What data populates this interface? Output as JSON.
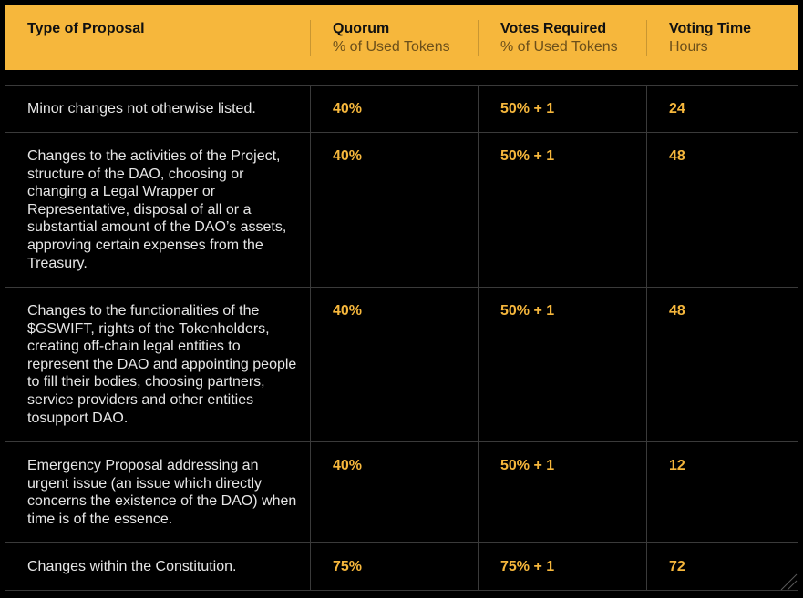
{
  "header": {
    "columns": [
      {
        "title": "Type of Proposal",
        "subtitle": ""
      },
      {
        "title": "Quorum",
        "subtitle": "% of Used Tokens"
      },
      {
        "title": "Votes Required",
        "subtitle": "% of Used Tokens"
      },
      {
        "title": "Voting Time",
        "subtitle": "Hours"
      }
    ]
  },
  "rows": [
    {
      "type": "Minor changes not otherwise listed.",
      "quorum": "40%",
      "votes": "50% + 1",
      "time": "24"
    },
    {
      "type": "Changes to the activities of the Project, structure of the DAO, choosing or changing a Legal Wrapper or Representative, disposal of all or a substantial amount of the DAO’s assets, approving certain expenses from the Treasury.",
      "quorum": "40%",
      "votes": "50% + 1",
      "time": "48"
    },
    {
      "type": "Changes to the functionalities of the $GSWIFT, rights of the Tokenholders, creating off-chain legal entities to represent the DAO and appointing people to fill their bodies, choosing partners, service providers and other entities tosupport DAO.",
      "quorum": "40%",
      "votes": "50% + 1",
      "time": "48"
    },
    {
      "type": "Emergency Proposal addressing an urgent issue (an issue which directly concerns the existence of the DAO) when time is of the essence.",
      "quorum": "40%",
      "votes": "50% + 1",
      "time": "12"
    },
    {
      "type": "Changes within the Constitution.",
      "quorum": "75%",
      "votes": "75% + 1",
      "time": "72"
    }
  ],
  "colors": {
    "accent": "#f6b73c",
    "background": "#000000",
    "border": "#3a3a3a"
  },
  "icons": {
    "corner": "resize-corner-icon"
  }
}
